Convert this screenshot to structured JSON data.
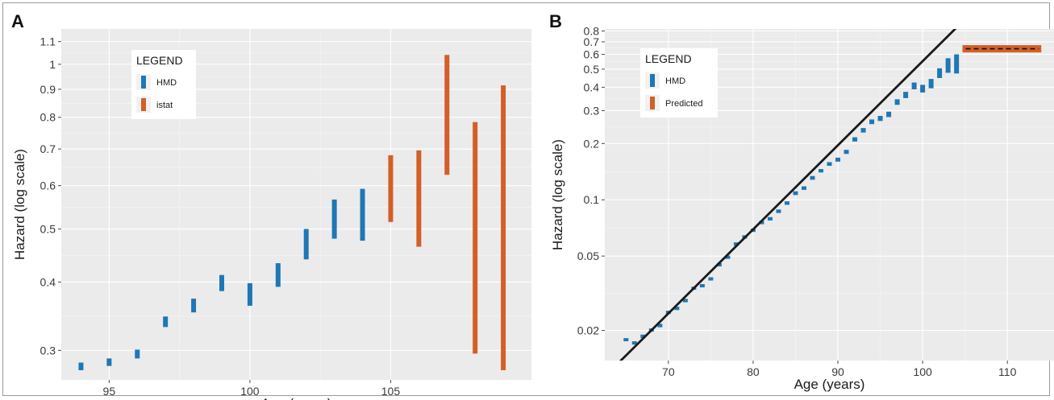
{
  "chart_data": [
    {
      "panel": "A",
      "type": "error_bars",
      "xlabel": "Age (years)",
      "ylabel": "Hazard (log scale)",
      "ylog": true,
      "xlim": [
        93.3,
        110
      ],
      "ylim": [
        0.265,
        1.16
      ],
      "xticks": [
        95,
        100,
        105
      ],
      "yticks": [
        0.3,
        0.4,
        0.5,
        0.6,
        0.7,
        0.8,
        0.9,
        1,
        1.1
      ],
      "ytick_labels": [
        "0.3",
        "0.4",
        "0.5",
        "0.6",
        "0.7",
        "0.8",
        "0.9",
        "1",
        "1.1"
      ],
      "grid": true,
      "legend_title": "LEGEND",
      "legend_position": "top-left",
      "series": [
        {
          "name": "HMD",
          "color": "#1f77b4",
          "points": [
            {
              "x": 94,
              "low": 0.276,
              "high": 0.285
            },
            {
              "x": 95,
              "low": 0.281,
              "high": 0.29
            },
            {
              "x": 96,
              "low": 0.29,
              "high": 0.301
            },
            {
              "x": 97,
              "low": 0.331,
              "high": 0.346
            },
            {
              "x": 98,
              "low": 0.352,
              "high": 0.373
            },
            {
              "x": 99,
              "low": 0.385,
              "high": 0.412
            },
            {
              "x": 100,
              "low": 0.362,
              "high": 0.398
            },
            {
              "x": 101,
              "low": 0.392,
              "high": 0.433
            },
            {
              "x": 102,
              "low": 0.44,
              "high": 0.5
            },
            {
              "x": 103,
              "low": 0.48,
              "high": 0.566
            },
            {
              "x": 104,
              "low": 0.476,
              "high": 0.592
            }
          ]
        },
        {
          "name": "istat",
          "color": "#d35f27",
          "points": [
            {
              "x": 105,
              "low": 0.515,
              "high": 0.682
            },
            {
              "x": 106,
              "low": 0.464,
              "high": 0.696
            },
            {
              "x": 107,
              "low": 0.628,
              "high": 1.04
            },
            {
              "x": 108,
              "low": 0.296,
              "high": 0.784
            },
            {
              "x": 109,
              "low": 0.276,
              "high": 0.915
            }
          ]
        }
      ]
    },
    {
      "panel": "B",
      "type": "error_bars",
      "xlabel": "Age (years)",
      "ylabel": "Hazard (log scale)",
      "ylog": true,
      "xlim": [
        62.5,
        115.5
      ],
      "ylim": [
        0.0138,
        0.82
      ],
      "xticks": [
        70,
        80,
        90,
        100,
        110
      ],
      "yticks": [
        0.02,
        0.05,
        0.1,
        0.2,
        0.3,
        0.4,
        0.5,
        0.6,
        0.7,
        0.8
      ],
      "ytick_labels": [
        "0.02",
        "0.05",
        "0.1",
        "0.2",
        "0.3",
        "0.4",
        "0.5",
        "0.6",
        "0.7",
        "0.8"
      ],
      "grid": true,
      "legend_title": "LEGEND",
      "legend_position": "top-left",
      "series": [
        {
          "name": "HMD",
          "color": "#1f77b4",
          "points": [
            {
              "x": 65,
              "low": 0.0175,
              "high": 0.0182
            },
            {
              "x": 66,
              "low": 0.0168,
              "high": 0.0175
            },
            {
              "x": 67,
              "low": 0.0182,
              "high": 0.019
            },
            {
              "x": 68,
              "low": 0.0197,
              "high": 0.0205
            },
            {
              "x": 69,
              "low": 0.0208,
              "high": 0.0217
            },
            {
              "x": 70,
              "low": 0.0245,
              "high": 0.0255
            },
            {
              "x": 71,
              "low": 0.0257,
              "high": 0.0268
            },
            {
              "x": 72,
              "low": 0.0283,
              "high": 0.0295
            },
            {
              "x": 73,
              "low": 0.033,
              "high": 0.0343
            },
            {
              "x": 74,
              "low": 0.034,
              "high": 0.0354
            },
            {
              "x": 75,
              "low": 0.037,
              "high": 0.0385
            },
            {
              "x": 76,
              "low": 0.044,
              "high": 0.0458
            },
            {
              "x": 77,
              "low": 0.0483,
              "high": 0.0503
            },
            {
              "x": 78,
              "low": 0.0568,
              "high": 0.0592
            },
            {
              "x": 79,
              "low": 0.062,
              "high": 0.0646
            },
            {
              "x": 80,
              "low": 0.0673,
              "high": 0.0701
            },
            {
              "x": 81,
              "low": 0.074,
              "high": 0.0771
            },
            {
              "x": 82,
              "low": 0.0775,
              "high": 0.0808
            },
            {
              "x": 83,
              "low": 0.085,
              "high": 0.0887
            },
            {
              "x": 84,
              "low": 0.094,
              "high": 0.0981
            },
            {
              "x": 85,
              "low": 0.106,
              "high": 0.111
            },
            {
              "x": 86,
              "low": 0.113,
              "high": 0.118
            },
            {
              "x": 87,
              "low": 0.128,
              "high": 0.134
            },
            {
              "x": 88,
              "low": 0.14,
              "high": 0.146
            },
            {
              "x": 89,
              "low": 0.152,
              "high": 0.159
            },
            {
              "x": 90,
              "low": 0.16,
              "high": 0.168
            },
            {
              "x": 91,
              "low": 0.176,
              "high": 0.185
            },
            {
              "x": 92,
              "low": 0.205,
              "high": 0.216
            },
            {
              "x": 93,
              "low": 0.229,
              "high": 0.242
            },
            {
              "x": 94,
              "low": 0.254,
              "high": 0.269
            },
            {
              "x": 95,
              "low": 0.264,
              "high": 0.281
            },
            {
              "x": 96,
              "low": 0.277,
              "high": 0.296
            },
            {
              "x": 97,
              "low": 0.322,
              "high": 0.345
            },
            {
              "x": 98,
              "low": 0.35,
              "high": 0.378
            },
            {
              "x": 99,
              "low": 0.39,
              "high": 0.424
            },
            {
              "x": 100,
              "low": 0.375,
              "high": 0.412
            },
            {
              "x": 101,
              "low": 0.395,
              "high": 0.443
            },
            {
              "x": 102,
              "low": 0.448,
              "high": 0.505
            },
            {
              "x": 103,
              "low": 0.478,
              "high": 0.572
            },
            {
              "x": 104,
              "low": 0.474,
              "high": 0.6
            }
          ]
        },
        {
          "name": "Predicted",
          "color": "#d35f27",
          "band": {
            "x_start": 104.7,
            "x_end": 114,
            "low": 0.614,
            "high": 0.672
          },
          "dashed_value": 0.643
        }
      ],
      "line": {
        "color": "#1a1a1a",
        "points": [
          {
            "x": 64,
            "y": 0.01325
          },
          {
            "x": 104.5,
            "y": 0.8787
          }
        ]
      }
    }
  ]
}
